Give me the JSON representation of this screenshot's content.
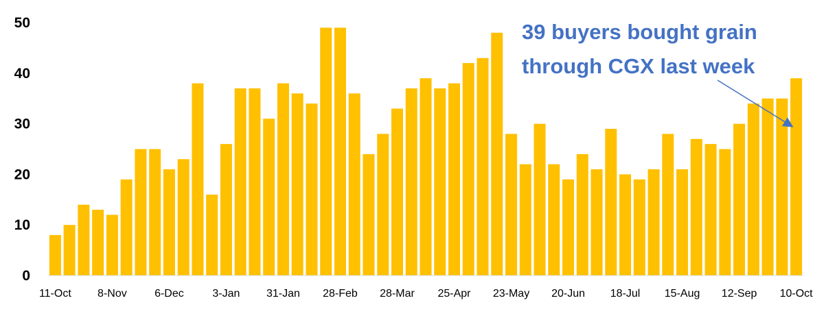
{
  "chart_data": {
    "type": "bar",
    "bar_color": "#FFC000",
    "annotation_color": "#4472C4",
    "annotation": {
      "line1": "39 buyers bought grain",
      "line2": "through CGX last week"
    },
    "ylim": [
      0,
      50
    ],
    "yticks": [
      "0",
      "10",
      "20",
      "30",
      "40",
      "50"
    ],
    "grid": false,
    "x_tick_labels": [
      {
        "index": 0,
        "label": "11-Oct"
      },
      {
        "index": 4,
        "label": "8-Nov"
      },
      {
        "index": 8,
        "label": "6-Dec"
      },
      {
        "index": 12,
        "label": "3-Jan"
      },
      {
        "index": 16,
        "label": "31-Jan"
      },
      {
        "index": 20,
        "label": "28-Feb"
      },
      {
        "index": 24,
        "label": "28-Mar"
      },
      {
        "index": 28,
        "label": "25-Apr"
      },
      {
        "index": 32,
        "label": "23-May"
      },
      {
        "index": 36,
        "label": "20-Jun"
      },
      {
        "index": 40,
        "label": "18-Jul"
      },
      {
        "index": 44,
        "label": "15-Aug"
      },
      {
        "index": 48,
        "label": "12-Sep"
      },
      {
        "index": 52,
        "label": "10-Oct"
      }
    ],
    "values": [
      8,
      10,
      14,
      13,
      12,
      19,
      25,
      25,
      21,
      23,
      38,
      16,
      26,
      37,
      37,
      31,
      38,
      36,
      34,
      49,
      49,
      36,
      24,
      28,
      33,
      37,
      39,
      37,
      38,
      42,
      43,
      48,
      28,
      22,
      30,
      22,
      19,
      24,
      21,
      29,
      20,
      19,
      21,
      28,
      21,
      27,
      26,
      25,
      30,
      34,
      35,
      35,
      39
    ]
  }
}
